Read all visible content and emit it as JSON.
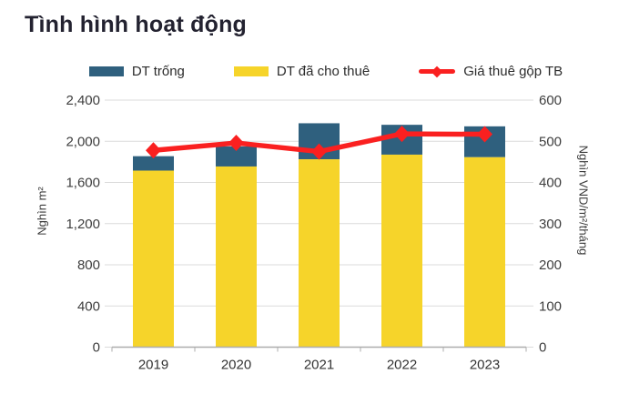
{
  "page": {
    "title": "Tình hình hoạt động"
  },
  "colors": {
    "title_text": "#232230",
    "grid": "#DBDBDB",
    "axis": "#ADADAD",
    "bar_vacant": "#2F607E",
    "bar_leased": "#F6D42A",
    "rent_line": "#FA2020"
  },
  "chart_data": {
    "type": "bar",
    "subtype": "stacked-bars-with-line-overlay",
    "title": "Tình hình hoạt động",
    "categories": [
      "2019",
      "2020",
      "2021",
      "2022",
      "2023"
    ],
    "series": [
      {
        "name": "DT trống",
        "kind": "bar",
        "stack_index": 1,
        "axis": "left",
        "color": "#2F607E",
        "values": [
          140,
          195,
          350,
          290,
          300
        ]
      },
      {
        "name": "DT đã cho thuê",
        "kind": "bar",
        "stack_index": 0,
        "axis": "left",
        "color": "#F6D42A",
        "values": [
          1715,
          1755,
          1825,
          1870,
          1845
        ]
      },
      {
        "name": "Giá thuê gộp TB",
        "kind": "line",
        "axis": "right",
        "color": "#FA2020",
        "values": [
          478,
          496,
          475,
          518,
          517
        ]
      }
    ],
    "left_axis": {
      "label": "Nghìn m²",
      "range": [
        0,
        2400
      ],
      "ticks": [
        "0",
        "400",
        "800",
        "1,200",
        "1,600",
        "2,000",
        "2,400"
      ]
    },
    "right_axis": {
      "label": "Nghìn VND/m²/tháng",
      "range": [
        0,
        600
      ],
      "ticks": [
        "0",
        "100",
        "200",
        "300",
        "400",
        "500",
        "600"
      ]
    },
    "grid": true,
    "legend_position": "top-center"
  }
}
